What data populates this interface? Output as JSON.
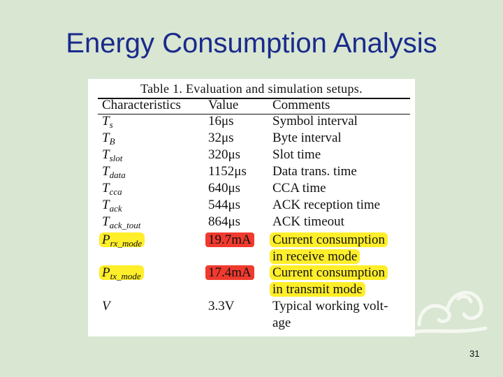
{
  "slide": {
    "title": "Energy Consumption Analysis",
    "page_number": "31"
  },
  "table": {
    "caption": "Table 1. Evaluation and simulation setups.",
    "headers": [
      "Characteristics",
      "Value",
      "Comments"
    ],
    "rows": [
      {
        "symbol": "T",
        "sub": "s",
        "value": "16μs",
        "comment": [
          "Symbol interval"
        ]
      },
      {
        "symbol": "T",
        "sub": "B",
        "value": "32μs",
        "comment": [
          "Byte interval"
        ]
      },
      {
        "symbol": "T",
        "sub": "slot",
        "value": "320μs",
        "comment": [
          "Slot time"
        ]
      },
      {
        "symbol": "T",
        "sub": "data",
        "value": "1152μs",
        "comment": [
          "Data trans. time"
        ]
      },
      {
        "symbol": "T",
        "sub": "cca",
        "value": "640μs",
        "comment": [
          "CCA time"
        ]
      },
      {
        "symbol": "T",
        "sub": "ack",
        "value": "544μs",
        "comment": [
          "ACK reception time"
        ]
      },
      {
        "symbol": "T",
        "sub": "ack_tout",
        "value": "864μs",
        "comment": [
          "ACK timeout"
        ]
      },
      {
        "symbol": "P",
        "sub": "rx_mode",
        "value": "19.7mA",
        "comment": [
          "Current consumption",
          "in receive mode"
        ]
      },
      {
        "symbol": "P",
        "sub": "tx_mode",
        "value": "17.4mA",
        "comment": [
          "Current consumption",
          "in transmit mode"
        ]
      },
      {
        "symbol": "V",
        "sub": "",
        "value": "3.3V",
        "comment": [
          "Typical working volt-",
          "age"
        ]
      }
    ]
  },
  "colors": {
    "background": "#d8e6d2",
    "title": "#1a2a8c",
    "highlight_yellow": "#ffee2a",
    "highlight_red": "#f03a2e"
  },
  "decoration": "cloud-ornament-icon"
}
